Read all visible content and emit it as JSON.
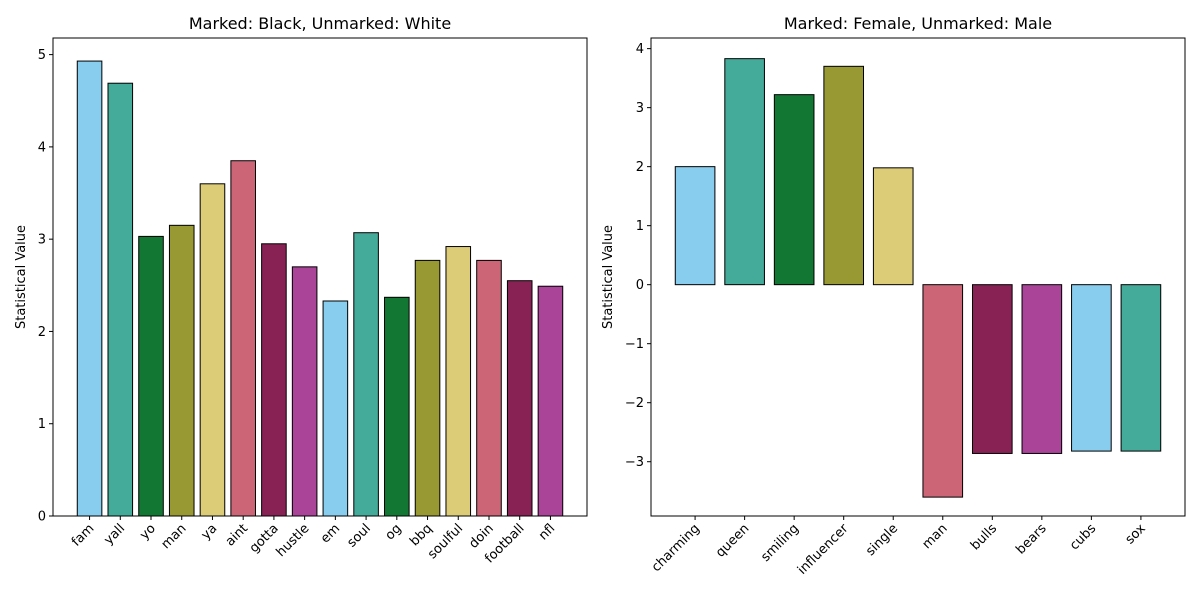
{
  "chart_data": [
    {
      "type": "bar",
      "title": "Marked: Black, Unmarked: White",
      "xlabel": "",
      "ylabel": "Statistical Value",
      "ylim": [
        0,
        5.18
      ],
      "yticks": [
        0,
        1,
        2,
        3,
        4,
        5
      ],
      "ytick_labels": [
        "0",
        "1",
        "2",
        "3",
        "4",
        "5"
      ],
      "categories": [
        "fam",
        "yall",
        "yo",
        "man",
        "ya",
        "aint",
        "gotta",
        "hustle",
        "em",
        "soul",
        "og",
        "bbq",
        "soulful",
        "doin",
        "football",
        "nfl"
      ],
      "values": [
        4.93,
        4.69,
        3.03,
        3.15,
        3.6,
        3.85,
        2.95,
        2.7,
        2.33,
        3.07,
        2.37,
        2.77,
        2.92,
        2.77,
        2.55,
        2.49
      ],
      "colors": [
        "#88CCEE",
        "#44AA99",
        "#117733",
        "#999933",
        "#DDCC77",
        "#CC6677",
        "#882255",
        "#AA4499",
        "#88CCEE",
        "#44AA99",
        "#117733",
        "#999933",
        "#DDCC77",
        "#CC6677",
        "#882255",
        "#AA4499"
      ],
      "grid": false,
      "legend": "none"
    },
    {
      "type": "bar",
      "title": "Marked: Female, Unmarked: Male",
      "xlabel": "",
      "ylabel": "Statistical Value",
      "ylim": [
        -3.92,
        4.18
      ],
      "yticks": [
        -3,
        -2,
        -1,
        0,
        1,
        2,
        3,
        4
      ],
      "ytick_labels": [
        "−3",
        "−2",
        "−1",
        "0",
        "1",
        "2",
        "3",
        "4"
      ],
      "categories": [
        "charming",
        "queen",
        "smiling",
        "influencer",
        "single",
        "man",
        "bulls",
        "bears",
        "cubs",
        "sox"
      ],
      "values": [
        2.0,
        3.83,
        3.22,
        3.7,
        1.98,
        -3.6,
        -2.86,
        -2.86,
        -2.82,
        -2.82
      ],
      "colors": [
        "#88CCEE",
        "#44AA99",
        "#117733",
        "#999933",
        "#DDCC77",
        "#CC6677",
        "#882255",
        "#AA4499",
        "#88CCEE",
        "#44AA99"
      ],
      "grid": false,
      "legend": "none"
    }
  ]
}
